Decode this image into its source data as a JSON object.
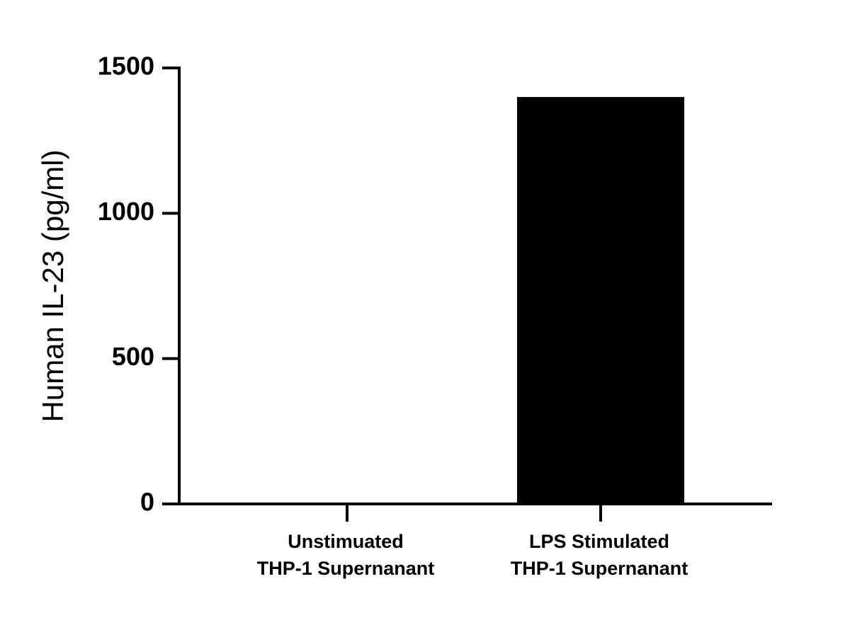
{
  "chart_data": {
    "type": "bar",
    "y_label": "Human IL-23 (pg/ml)",
    "categories": [
      [
        "Unstimuated",
        "THP-1 Supernanant"
      ],
      [
        "LPS Stimulated",
        "THP-1 Supernanant"
      ]
    ],
    "values": [
      0,
      1400
    ],
    "color": "#000000",
    "ylim": [
      0,
      1500
    ],
    "yticks": [
      0,
      500,
      1000,
      1500
    ],
    "grid": false
  }
}
